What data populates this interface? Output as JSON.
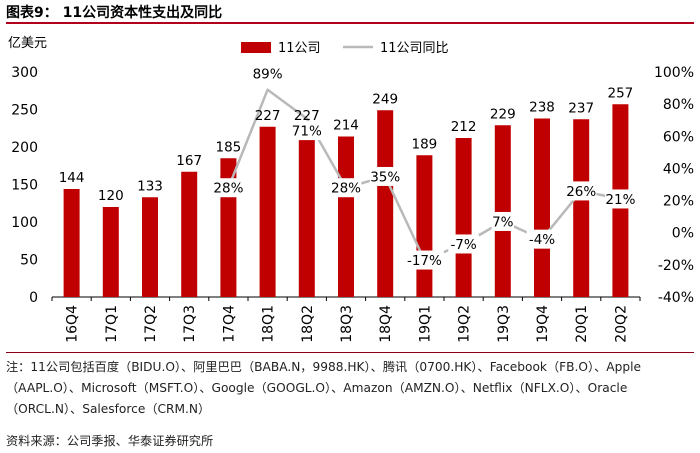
{
  "header": {
    "title": "图表9： 11公司资本性支出及同比"
  },
  "colors": {
    "bar": "#c00000",
    "line": "#b9b9b9",
    "rule": "#b0001e"
  },
  "chart_data": {
    "type": "bar",
    "title": "11公司资本性支出及同比",
    "ylabel": "亿美元",
    "categories": [
      "16Q4",
      "17Q1",
      "17Q2",
      "17Q3",
      "17Q4",
      "18Q1",
      "18Q2",
      "18Q3",
      "18Q4",
      "19Q1",
      "19Q2",
      "19Q3",
      "19Q4",
      "20Q1",
      "20Q2"
    ],
    "series": [
      {
        "name": "11公司",
        "type": "bar",
        "axis": "left",
        "values": [
          144,
          120,
          133,
          167,
          185,
          227,
          227,
          214,
          249,
          189,
          212,
          229,
          238,
          237,
          257
        ]
      },
      {
        "name": "11公司同比",
        "type": "line",
        "axis": "right",
        "values": [
          null,
          null,
          null,
          null,
          28,
          89,
          71,
          28,
          35,
          -17,
          -7,
          7,
          -4,
          26,
          21
        ],
        "labels": [
          "",
          "",
          "",
          "",
          "28%",
          "89%",
          "71%",
          "28%",
          "35%",
          "-17%",
          "-7%",
          "7%",
          "-4%",
          "26%",
          "21%"
        ]
      }
    ],
    "ylim": [
      0,
      300
    ],
    "yticks": [
      "0",
      "50",
      "100",
      "150",
      "200",
      "250",
      "300"
    ],
    "y2lim": [
      -40,
      100
    ],
    "y2ticks": [
      "-40%",
      "-20%",
      "0%",
      "20%",
      "40%",
      "60%",
      "80%",
      "100%"
    ],
    "legend": "top-center"
  },
  "footer": {
    "note": "注：11公司包括百度（BIDU.O）、阿里巴巴（BABA.N，9988.HK）、腾讯（0700.HK）、Facebook（FB.O）、Apple（AAPL.O）、Microsoft（MSFT.O）、Google（GOOGL.O）、Amazon（AMZN.O）、Netflix（NFLX.O）、Oracle（ORCL.N）、Salesforce（CRM.N）",
    "source": "资料来源：公司季报、华泰证券研究所"
  }
}
